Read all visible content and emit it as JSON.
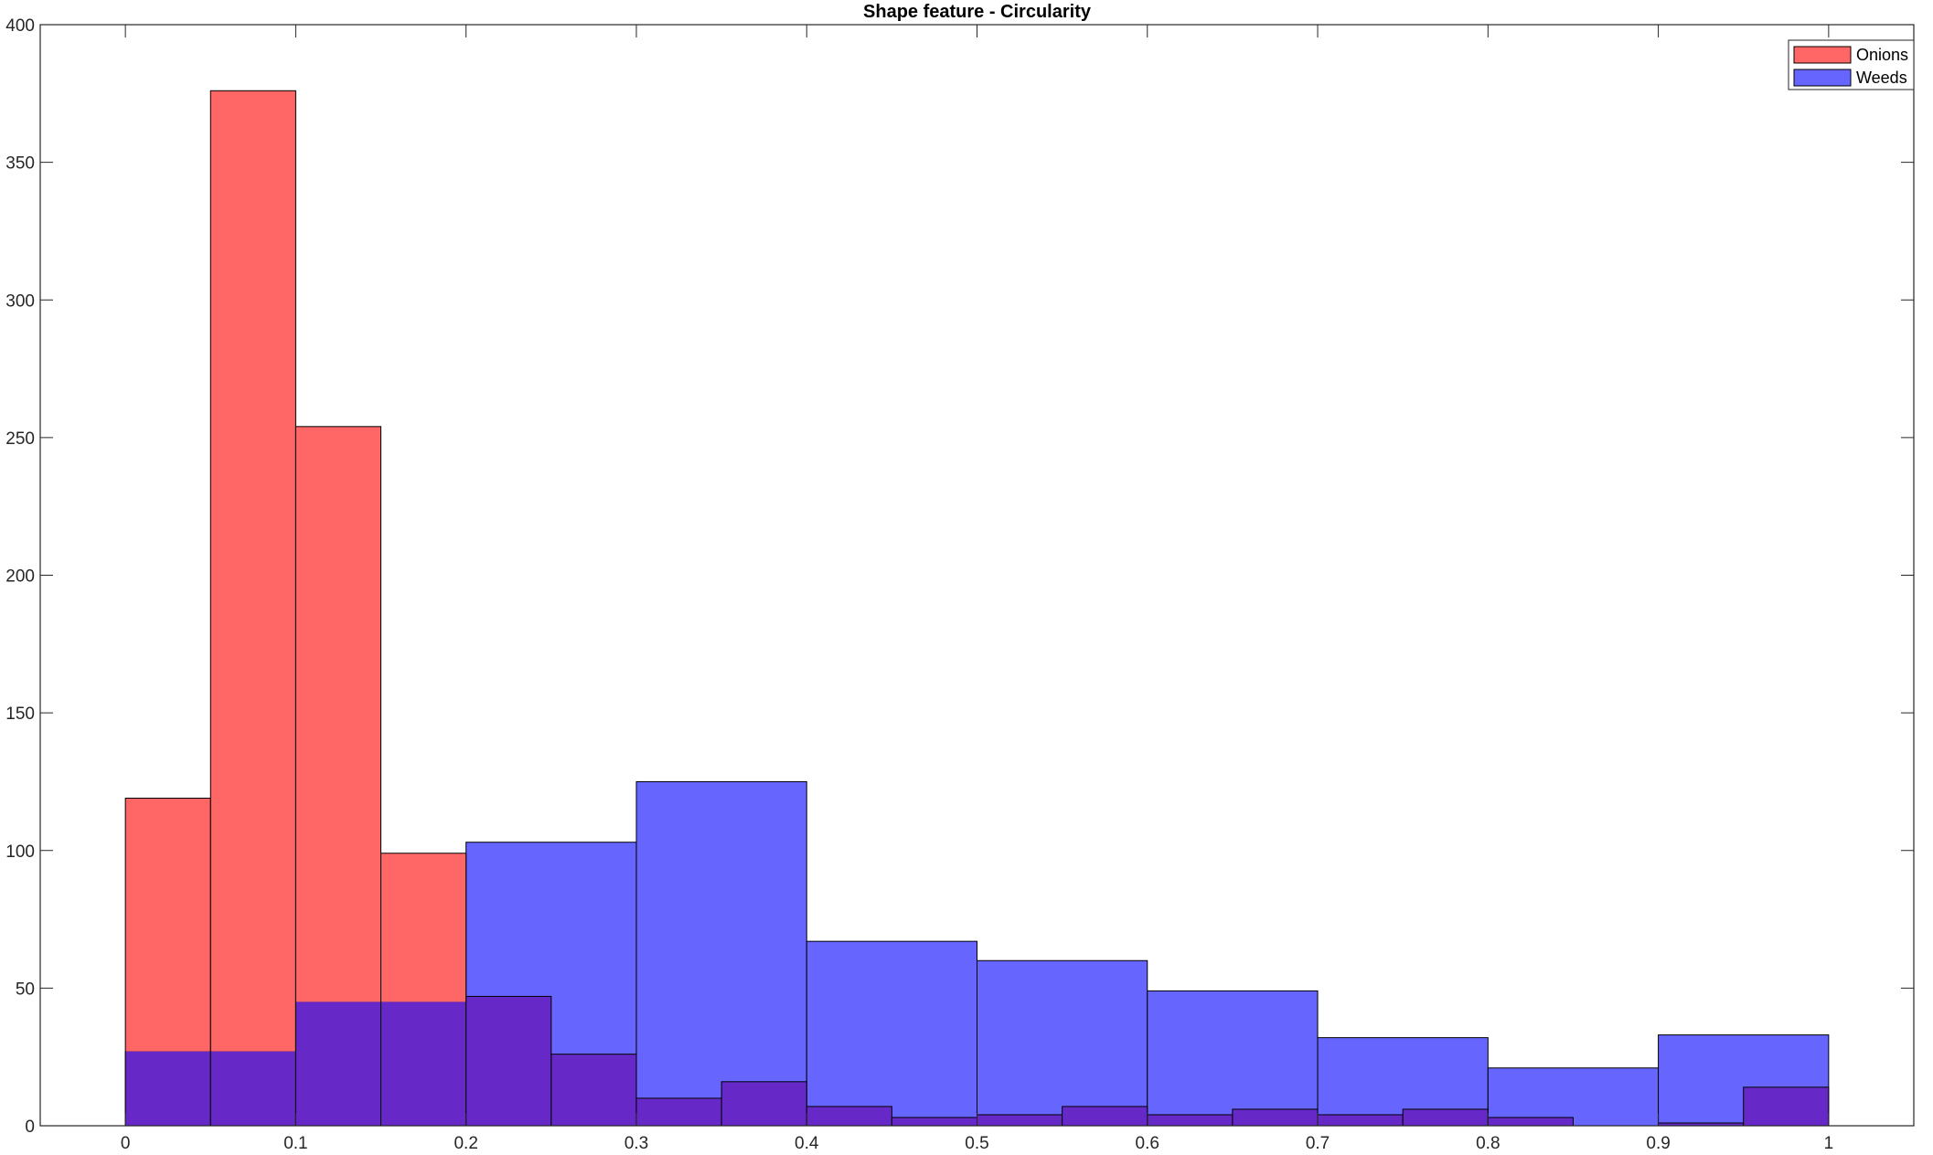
{
  "chart_data": {
    "type": "bar",
    "title": "Shape feature - Circularity",
    "xlabel": "",
    "ylabel": "",
    "xlim": [
      -0.05,
      1.05
    ],
    "ylim": [
      0,
      400
    ],
    "xticks": [
      0,
      0.1,
      0.2,
      0.3,
      0.4,
      0.5,
      0.6,
      0.7,
      0.8,
      0.9,
      1
    ],
    "xtick_labels": [
      "0",
      "0.1",
      "0.2",
      "0.3",
      "0.4",
      "0.5",
      "0.6",
      "0.7",
      "0.8",
      "0.9",
      "1"
    ],
    "yticks": [
      0,
      50,
      100,
      150,
      200,
      250,
      300,
      350,
      400
    ],
    "ytick_labels": [
      "0",
      "50",
      "100",
      "150",
      "200",
      "250",
      "300",
      "350",
      "400"
    ],
    "grid": false,
    "legend_position": "top-right",
    "overlap_color": "#6629c7",
    "series": [
      {
        "name": "Onions",
        "color": "#ff6666",
        "bin_width": 0.05,
        "bin_edges": [
          0,
          0.05,
          0.1,
          0.15,
          0.2,
          0.25,
          0.3,
          0.35,
          0.4,
          0.45,
          0.5,
          0.55,
          0.6,
          0.65,
          0.7,
          0.75,
          0.8,
          0.85,
          0.9,
          0.95,
          1.0
        ],
        "values": [
          119,
          376,
          254,
          99,
          47,
          26,
          10,
          16,
          7,
          3,
          4,
          7,
          4,
          6,
          4,
          6,
          3,
          0,
          1,
          14
        ]
      },
      {
        "name": "Weeds",
        "color": "#6666ff",
        "bin_width": 0.1,
        "bin_edges": [
          0,
          0.1,
          0.2,
          0.3,
          0.4,
          0.5,
          0.6,
          0.7,
          0.8,
          0.9,
          1.0
        ],
        "values": [
          27,
          45,
          103,
          125,
          67,
          60,
          49,
          32,
          21,
          33
        ]
      }
    ]
  }
}
